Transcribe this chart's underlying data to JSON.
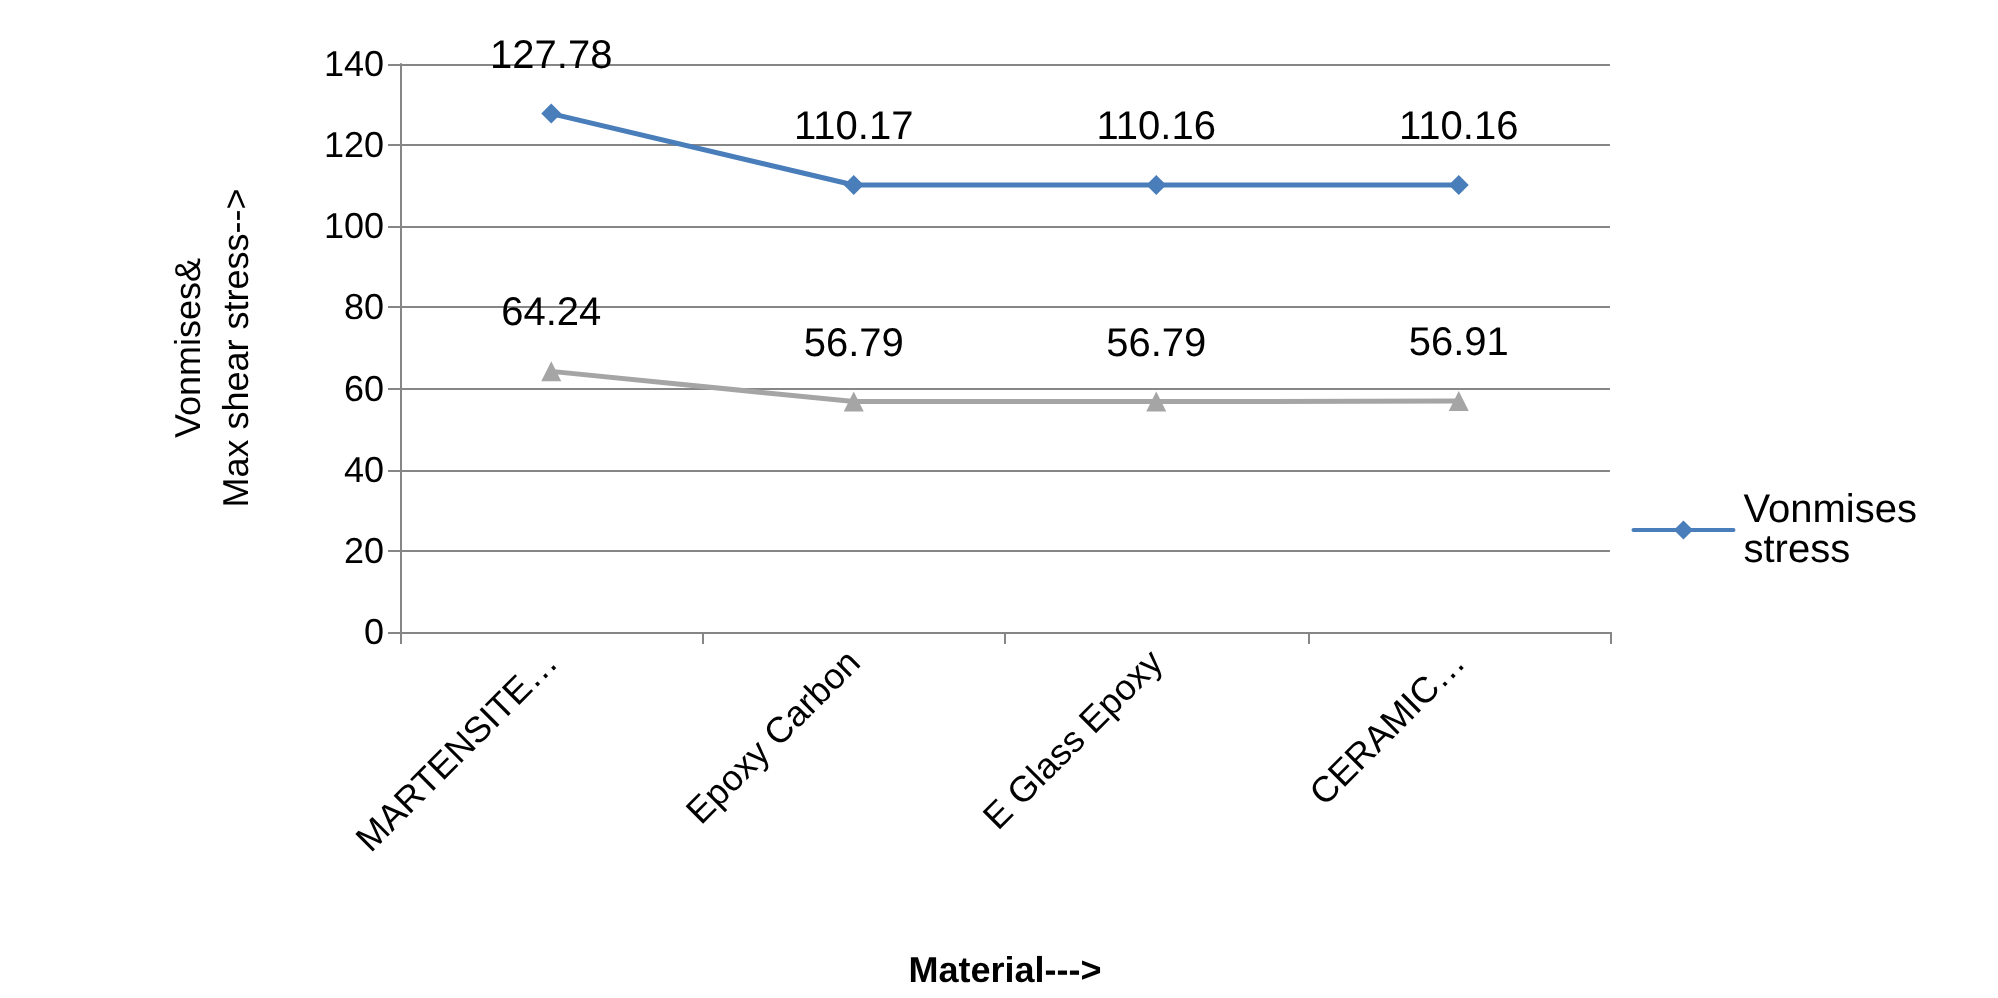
{
  "chart_data": {
    "type": "line",
    "xlabel": "Material--->",
    "ylabel": "Vonmises&\nMax shear stress-->",
    "categories": [
      "MARTENSITE…",
      "Epoxy Carbon",
      "E Glass Epoxy",
      "CERAMIC…"
    ],
    "series": [
      {
        "name": "Vonmises stress",
        "color": "#4a7ebb",
        "marker": "diamond",
        "values": [
          127.78,
          110.17,
          110.16,
          110.16
        ]
      },
      {
        "color": "#a5a5a5",
        "marker": "triangle",
        "values": [
          64.24,
          56.79,
          56.79,
          56.91
        ]
      }
    ],
    "ylim": [
      0,
      140
    ],
    "yticks": [
      0,
      20,
      40,
      60,
      80,
      100,
      120,
      140
    ],
    "grid": "y",
    "legend": "right",
    "data_labels": true,
    "line_style": "solid"
  }
}
